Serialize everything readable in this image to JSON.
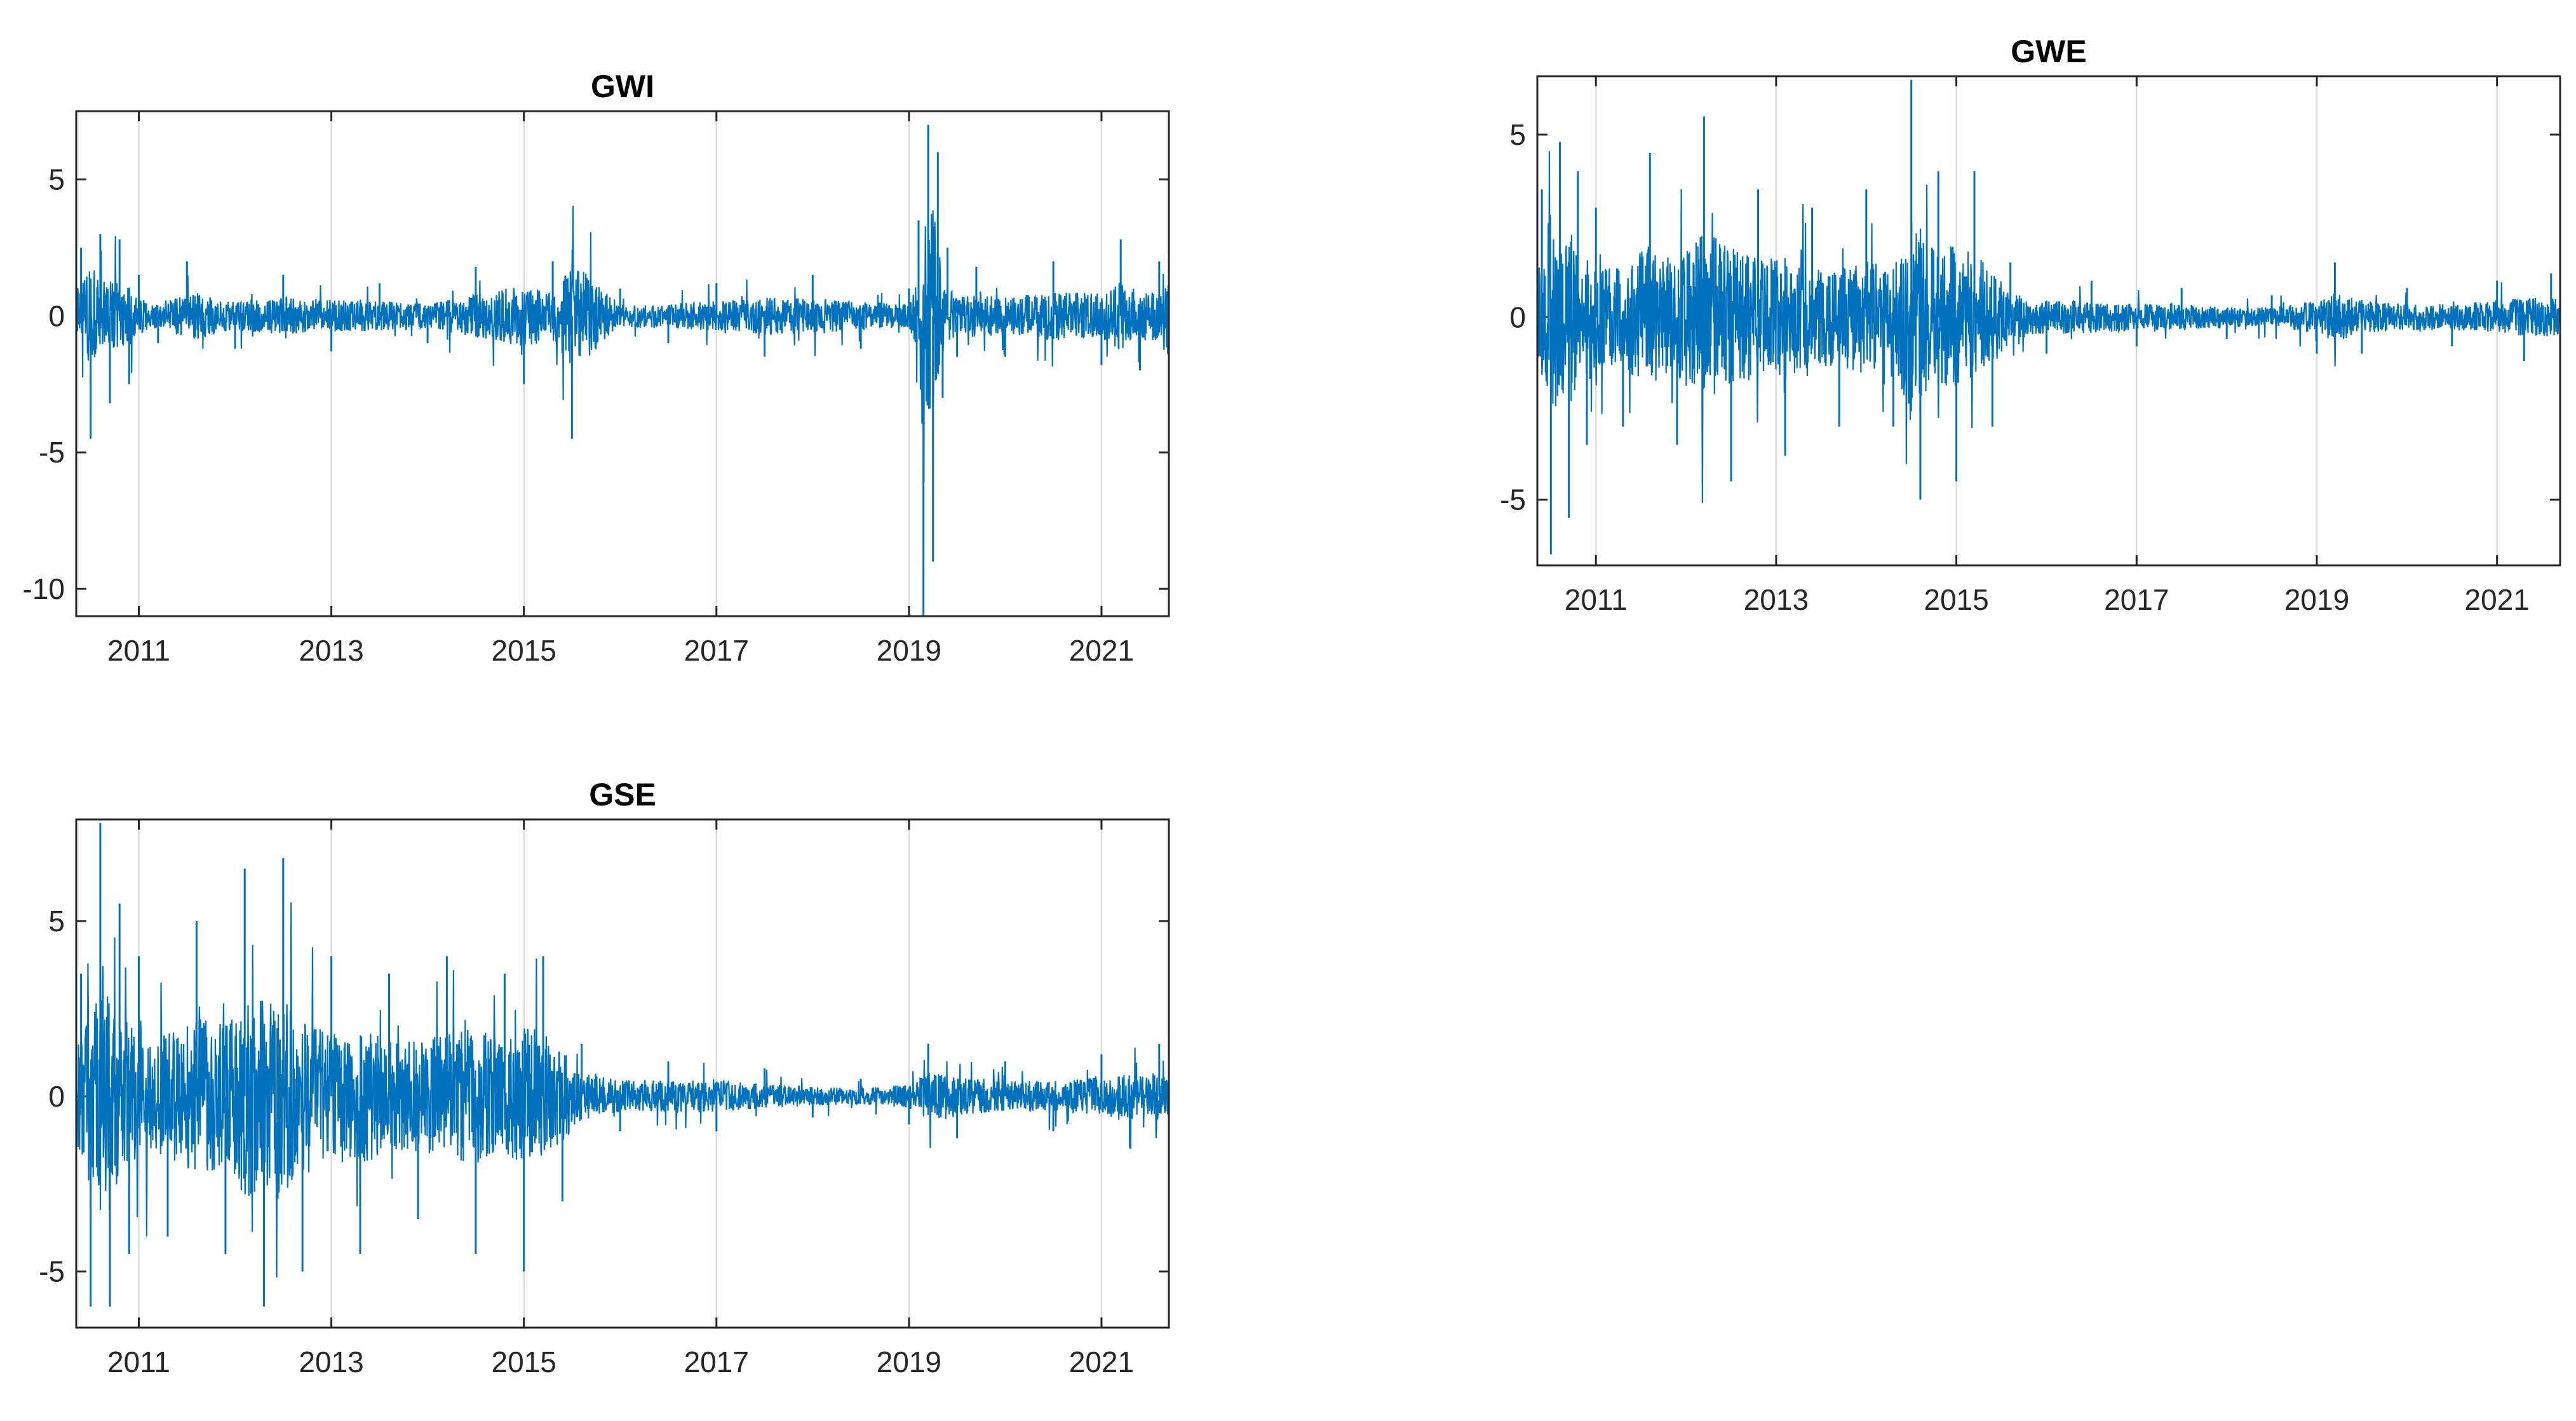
{
  "chart_data": [
    {
      "type": "line",
      "title": "GWI",
      "xlabel": "",
      "ylabel": "",
      "xlim": [
        2010.35,
        2021.7
      ],
      "ylim": [
        -11,
        7.5
      ],
      "xticks": [
        2011,
        2013,
        2015,
        2017,
        2019,
        2021
      ],
      "xtick_labels": [
        "2011",
        "2013",
        "2015",
        "2017",
        "2019",
        "2021"
      ],
      "yticks": [
        5,
        0,
        -5,
        -10
      ],
      "ytick_labels": [
        "5",
        "0",
        "-5",
        "-10"
      ],
      "grid": "x-only",
      "series": [
        {
          "color": "#0072BD",
          "x": [
            2010.4,
            2010.5,
            2010.6,
            2010.7,
            2010.8,
            2010.9,
            2011.0,
            2011.2,
            2011.5,
            2012.0,
            2012.5,
            2013.0,
            2013.5,
            2014.0,
            2014.5,
            2015.0,
            2015.3,
            2015.5,
            2016.0,
            2016.5,
            2017.0,
            2017.5,
            2018.0,
            2018.5,
            2019.0,
            2019.1,
            2019.15,
            2019.2,
            2019.25,
            2019.3,
            2019.35,
            2019.4,
            2019.5,
            2019.7,
            2020.0,
            2020.5,
            2021.0,
            2021.2,
            2021.4,
            2021.6,
            2021.7
          ],
          "y": [
            2.5,
            -4.5,
            3.0,
            -3.2,
            2.8,
            -2.5,
            1.5,
            -1.0,
            2.0,
            -1.2,
            1.5,
            -1.3,
            1.2,
            -1.0,
            1.8,
            -2.5,
            2.0,
            -4.5,
            1.0,
            -1.0,
            1.2,
            -1.5,
            1.5,
            -1.2,
            1.0,
            3.5,
            -11.0,
            7.0,
            -9.0,
            6.0,
            -3.0,
            2.5,
            -1.5,
            1.8,
            -1.5,
            2.0,
            -1.8,
            2.8,
            -2.0,
            2.0,
            -4.0
          ]
        }
      ]
    },
    {
      "type": "line",
      "title": "GWE",
      "xlabel": "",
      "ylabel": "",
      "xlim": [
        2010.35,
        2021.7
      ],
      "ylim": [
        -6.8,
        6.6
      ],
      "xticks": [
        2011,
        2013,
        2015,
        2017,
        2019,
        2021
      ],
      "xtick_labels": [
        "2011",
        "2013",
        "2015",
        "2017",
        "2019",
        "2021"
      ],
      "yticks": [
        5,
        0,
        -5
      ],
      "ytick_labels": [
        "5",
        "0",
        "-5"
      ],
      "grid": "x-only",
      "series": [
        {
          "color": "#0072BD",
          "x": [
            2010.4,
            2010.5,
            2010.6,
            2010.7,
            2010.8,
            2010.9,
            2011.0,
            2011.3,
            2011.6,
            2011.9,
            2012.2,
            2012.5,
            2012.8,
            2013.1,
            2013.4,
            2013.7,
            2014.0,
            2014.3,
            2014.5,
            2014.6,
            2014.8,
            2015.0,
            2015.2,
            2015.4,
            2015.6,
            2016.0,
            2016.5,
            2017.0,
            2017.5,
            2018.0,
            2018.5,
            2019.0,
            2019.2,
            2019.5,
            2020.0,
            2020.5,
            2021.0,
            2021.3,
            2021.6,
            2021.7
          ],
          "y": [
            3.5,
            -6.5,
            4.8,
            -5.5,
            4.0,
            -3.5,
            3.0,
            -3.0,
            4.5,
            -3.5,
            5.5,
            -4.5,
            3.5,
            -3.8,
            3.0,
            -3.0,
            3.5,
            -3.0,
            6.5,
            -5.0,
            4.0,
            -4.5,
            4.0,
            -3.0,
            1.5,
            -1.0,
            1.0,
            -0.8,
            0.8,
            -0.6,
            0.6,
            -1.0,
            1.5,
            -1.0,
            0.8,
            -0.8,
            1.0,
            -1.2,
            1.2,
            -1.0
          ]
        }
      ]
    },
    {
      "type": "line",
      "title": "GSE",
      "xlabel": "",
      "ylabel": "",
      "xlim": [
        2010.35,
        2021.7
      ],
      "ylim": [
        -6.6,
        7.9
      ],
      "xticks": [
        2011,
        2013,
        2015,
        2017,
        2019,
        2021
      ],
      "xtick_labels": [
        "2011",
        "2013",
        "2015",
        "2017",
        "2019",
        "2021"
      ],
      "yticks": [
        5,
        0,
        -5
      ],
      "ytick_labels": [
        "5",
        "0",
        "-5"
      ],
      "grid": "x-only",
      "series": [
        {
          "color": "#0072BD",
          "x": [
            2010.4,
            2010.5,
            2010.6,
            2010.7,
            2010.8,
            2010.9,
            2011.0,
            2011.3,
            2011.6,
            2011.9,
            2012.1,
            2012.3,
            2012.5,
            2012.7,
            2013.0,
            2013.3,
            2013.6,
            2013.9,
            2014.2,
            2014.5,
            2014.8,
            2015.0,
            2015.2,
            2015.4,
            2015.6,
            2016.0,
            2016.5,
            2017.0,
            2017.5,
            2018.0,
            2018.5,
            2019.0,
            2019.2,
            2019.5,
            2020.0,
            2020.5,
            2021.0,
            2021.3,
            2021.6,
            2021.7
          ],
          "y": [
            3.5,
            -6.0,
            7.8,
            -6.0,
            5.5,
            -4.5,
            4.0,
            -4.0,
            5.0,
            -4.5,
            6.5,
            -6.0,
            6.8,
            -5.0,
            4.0,
            -4.5,
            3.5,
            -3.5,
            4.0,
            -4.5,
            3.5,
            -5.0,
            4.0,
            -3.0,
            1.5,
            -1.0,
            1.0,
            -1.0,
            0.8,
            -0.6,
            0.5,
            -0.8,
            1.5,
            -1.2,
            1.0,
            -1.0,
            1.2,
            -1.5,
            1.5,
            -1.2
          ]
        }
      ]
    }
  ]
}
